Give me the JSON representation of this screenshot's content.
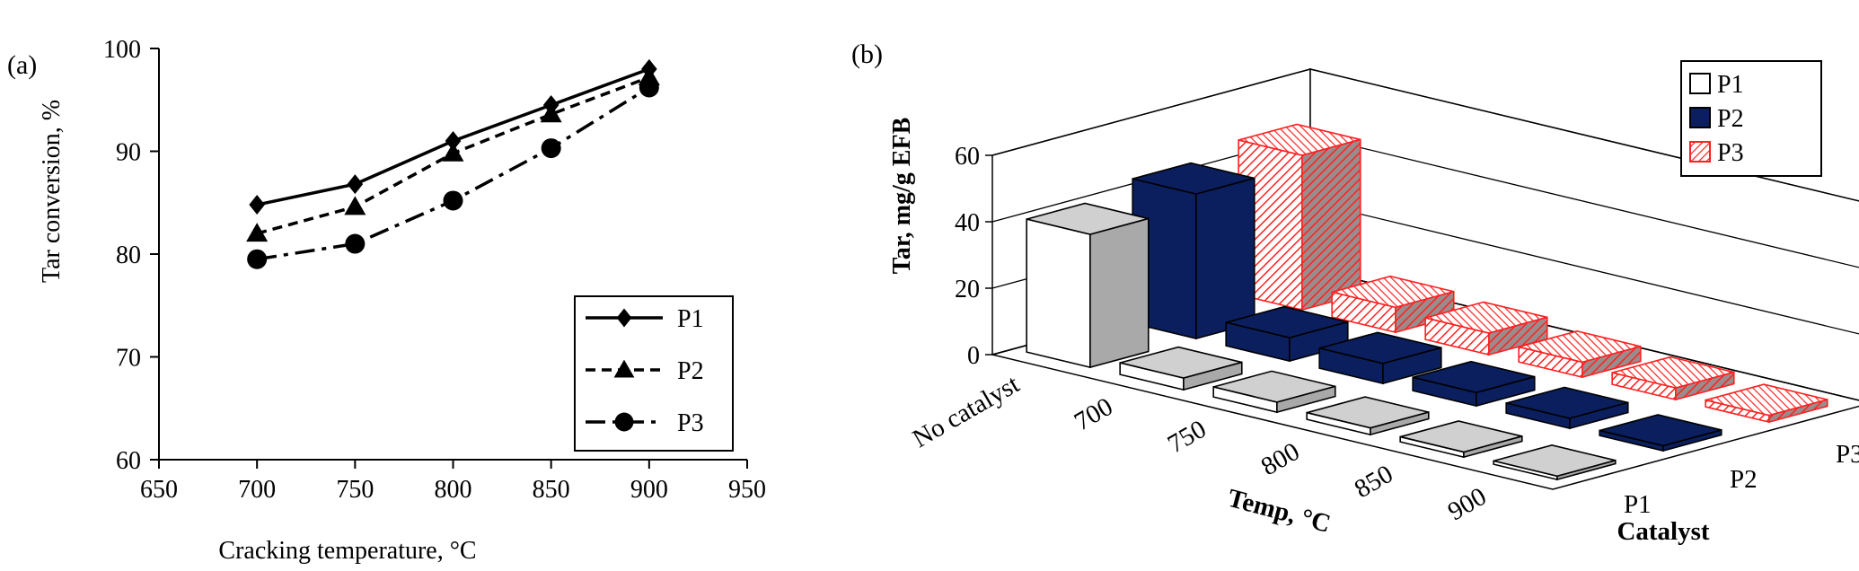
{
  "chart_data": [
    {
      "panel_label": "(a)",
      "type": "line",
      "xlabel": "Cracking temperature, °C",
      "ylabel": "Tar conversion, %",
      "xlim": [
        650,
        950
      ],
      "ylim": [
        60,
        100
      ],
      "xticks": [
        650,
        700,
        750,
        800,
        850,
        900,
        950
      ],
      "yticks": [
        60,
        70,
        80,
        90,
        100
      ],
      "grid": false,
      "legend_position": "bottom-right",
      "x": [
        700,
        750,
        800,
        850,
        900
      ],
      "series": [
        {
          "name": "P1",
          "marker": "diamond",
          "line": "solid",
          "values": [
            84.8,
            86.8,
            91.0,
            94.5,
            98.0
          ]
        },
        {
          "name": "P2",
          "marker": "triangle",
          "line": "dashed",
          "values": [
            82.0,
            84.6,
            89.8,
            93.6,
            97.2
          ]
        },
        {
          "name": "P3",
          "marker": "circle",
          "line": "dash-dot",
          "values": [
            79.5,
            81.0,
            85.2,
            90.3,
            96.2
          ]
        }
      ]
    },
    {
      "panel_label": "(b)",
      "type": "bar",
      "subtype": "3d-bar",
      "xlabel": "Temp, °C",
      "ylabel": "Tar, mg/g EFB",
      "zlabel": "Catalyst",
      "ylim": [
        0,
        60
      ],
      "yticks": [
        0,
        20,
        40,
        60
      ],
      "grid": true,
      "legend_position": "top-right",
      "categories": [
        "No catalyst",
        "700",
        "750",
        "800",
        "850",
        "900"
      ],
      "depth_categories": [
        "P1",
        "P2",
        "P3"
      ],
      "colors": {
        "P1": "#ffffff",
        "P2": "#0b1f5e",
        "P3": "#ff2020"
      },
      "series": [
        {
          "name": "P1",
          "values": [
            40.0,
            3.5,
            3.0,
            2.0,
            1.5,
            1.0
          ]
        },
        {
          "name": "P2",
          "values": [
            43.5,
            7.0,
            6.0,
            4.0,
            3.0,
            1.5
          ]
        },
        {
          "name": "P3",
          "values": [
            46.5,
            7.5,
            6.5,
            4.5,
            3.5,
            2.0
          ]
        }
      ]
    }
  ]
}
